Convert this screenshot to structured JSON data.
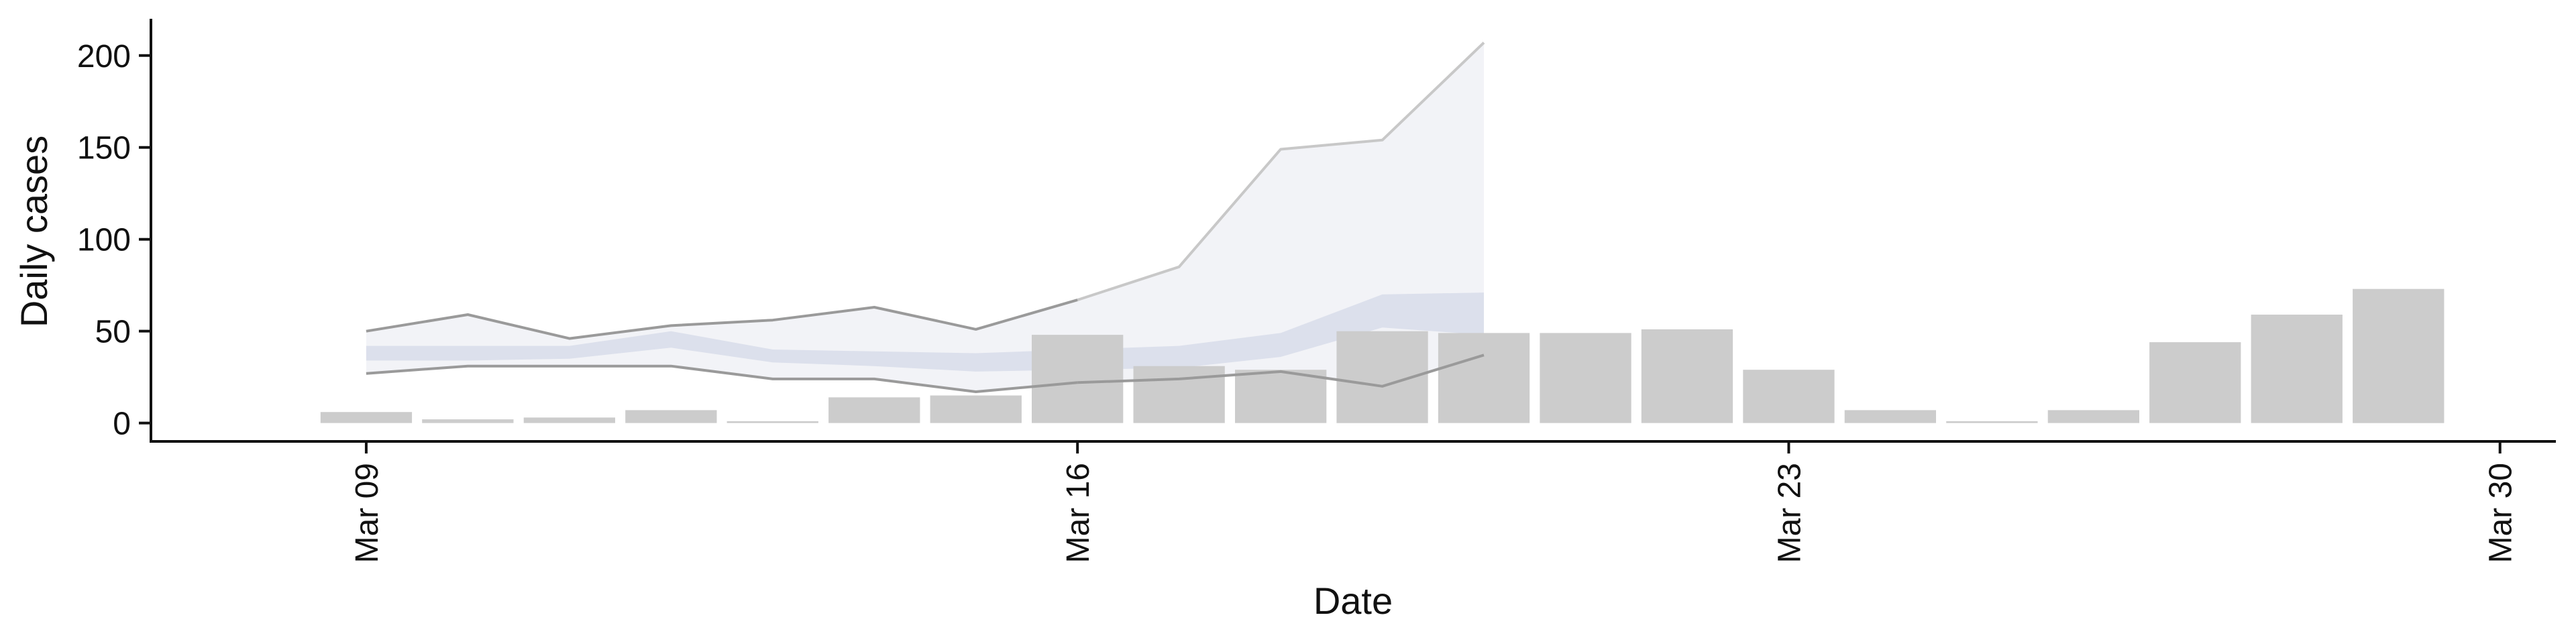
{
  "chart_data": {
    "type": "bar",
    "xlabel": "Date",
    "ylabel": "Daily cases",
    "ylim": [
      -10,
      220
    ],
    "xlim": [
      "2020-03-07",
      "2020-03-30"
    ],
    "grid": false,
    "legend": "none",
    "x_ticks": [
      {
        "date": "2020-03-09",
        "label": "Mar 09"
      },
      {
        "date": "2020-03-16",
        "label": "Mar 16"
      },
      {
        "date": "2020-03-23",
        "label": "Mar 23"
      },
      {
        "date": "2020-03-30",
        "label": "Mar 30"
      }
    ],
    "y_ticks": [
      0,
      50,
      100,
      150,
      200
    ],
    "bars": {
      "dates": [
        "2020-03-09",
        "2020-03-10",
        "2020-03-11",
        "2020-03-12",
        "2020-03-13",
        "2020-03-14",
        "2020-03-15",
        "2020-03-16",
        "2020-03-17",
        "2020-03-18",
        "2020-03-19",
        "2020-03-20",
        "2020-03-21",
        "2020-03-22",
        "2020-03-23",
        "2020-03-24",
        "2020-03-25",
        "2020-03-26",
        "2020-03-27",
        "2020-03-28",
        "2020-03-29"
      ],
      "values": [
        6,
        2,
        3,
        7,
        1,
        14,
        15,
        48,
        31,
        29,
        50,
        49,
        49,
        51,
        29,
        7,
        1,
        7,
        44,
        59,
        73
      ]
    },
    "projection": {
      "dates": [
        "2020-03-09",
        "2020-03-10",
        "2020-03-11",
        "2020-03-12",
        "2020-03-13",
        "2020-03-14",
        "2020-03-15",
        "2020-03-16",
        "2020-03-17",
        "2020-03-18",
        "2020-03-19",
        "2020-03-20"
      ],
      "upper": [
        50,
        59,
        46,
        53,
        56,
        63,
        51,
        67,
        85,
        149,
        154,
        207
      ],
      "lower": [
        27,
        31,
        31,
        31,
        24,
        24,
        17,
        22,
        24,
        28,
        20,
        37
      ],
      "inner_upper": [
        42,
        42,
        42,
        50,
        40,
        39,
        38,
        40,
        42,
        49,
        70,
        71
      ],
      "inner_lower": [
        34,
        34,
        35,
        41,
        33,
        31,
        28,
        29,
        30,
        36,
        52,
        48
      ],
      "observed_until": "2020-03-16"
    },
    "colors": {
      "bar": "#cccccc",
      "band_outer": "#eceef4",
      "band_inner": "#d6dbe8",
      "line_observed": "#9a9a9a",
      "line_projected": "#c8c8c8"
    }
  }
}
